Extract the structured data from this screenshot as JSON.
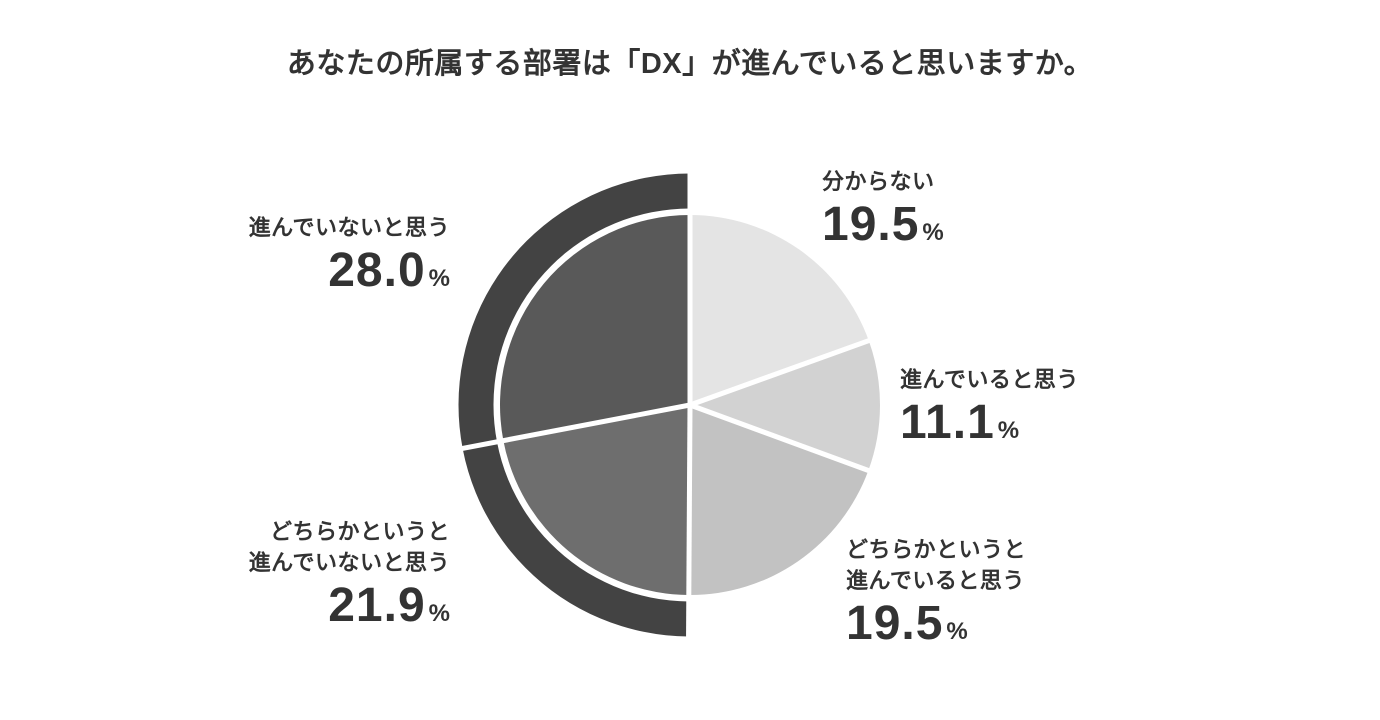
{
  "page": {
    "background": "#ffffff",
    "text_color": "#333333"
  },
  "chart_data": {
    "type": "pie",
    "title": "あなたの所属する部署は「DX」が進んでいると思いますか。",
    "unit": "%",
    "start_angle_deg": 0,
    "direction": "clockwise",
    "legend_position": "callout-labels-around-pie",
    "segments": [
      {
        "label": "分からない",
        "value": 19.5,
        "color": "#e4e4e4"
      },
      {
        "label": "進んでいると思う",
        "value": 11.1,
        "color": "#d2d2d2"
      },
      {
        "label": "どちらかというと進んでいると思う",
        "value": 19.5,
        "color": "#c2c2c2"
      },
      {
        "label": "どちらかというと進んでいないと思う",
        "value": 21.9,
        "color": "#6e6e6e"
      },
      {
        "label": "進んでいないと思う",
        "value": 28.0,
        "color": "#595959"
      }
    ],
    "highlight_ring": {
      "description": "outer emphasis arc spanning the two negative segments",
      "color": "#434343",
      "from_segment": 3,
      "to_segment": 4
    },
    "separator_color": "#ffffff"
  },
  "callouts": [
    {
      "lines": [
        "分からない"
      ],
      "value": "19.5",
      "unit": "%"
    },
    {
      "lines": [
        "進んでいると思う"
      ],
      "value": "11.1",
      "unit": "%"
    },
    {
      "lines": [
        "どちらかというと",
        "進んでいると思う"
      ],
      "value": "19.5",
      "unit": "%"
    },
    {
      "lines": [
        "進んでいないと思う"
      ],
      "value": "28.0",
      "unit": "%"
    },
    {
      "lines": [
        "どちらかというと",
        "進んでいないと思う"
      ],
      "value": "21.9",
      "unit": "%"
    }
  ]
}
